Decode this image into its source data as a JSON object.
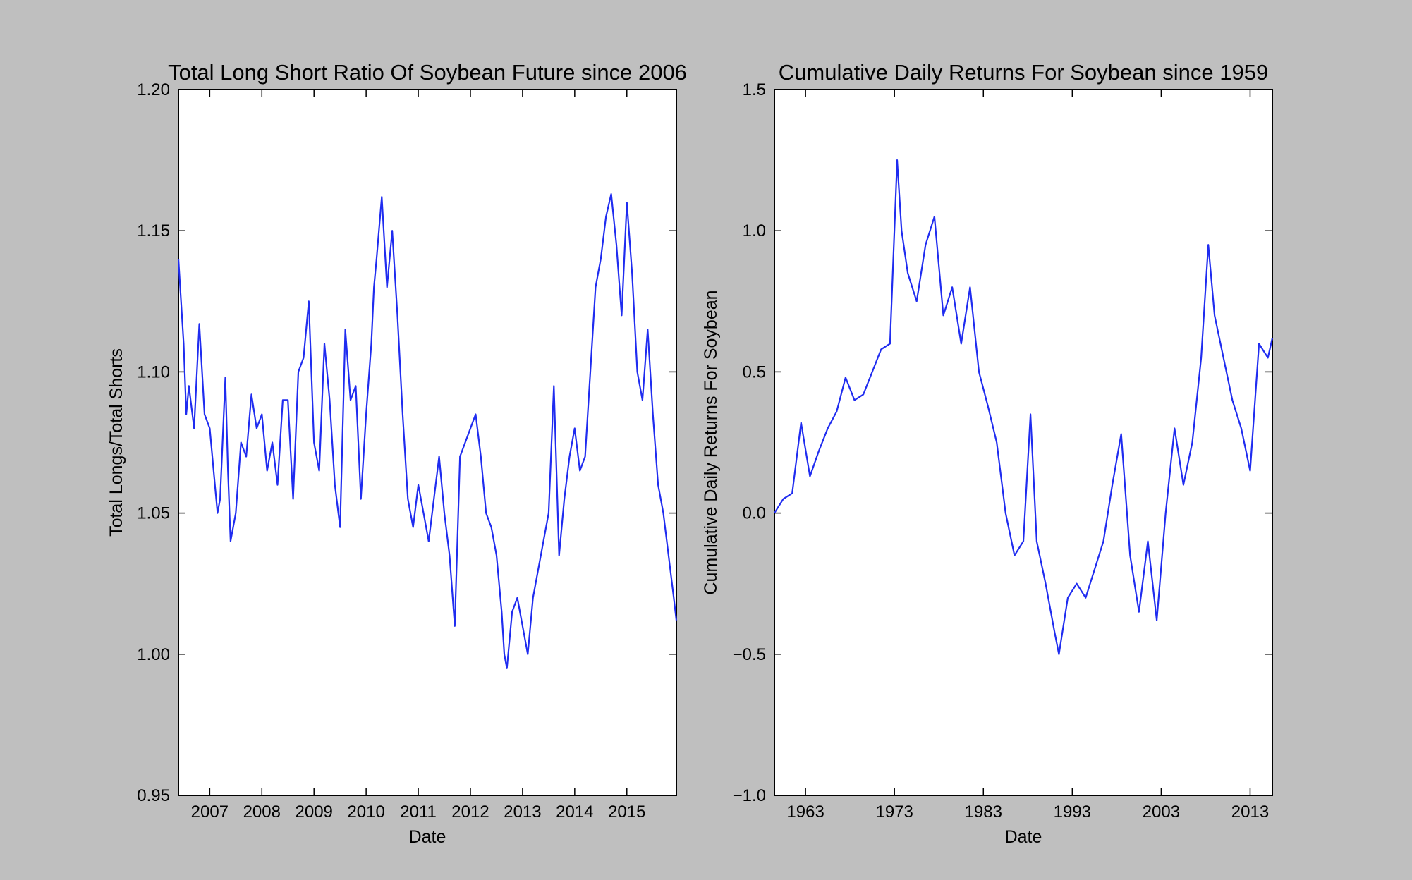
{
  "chart_data": [
    {
      "type": "line",
      "title": "Total Long Short Ratio Of Soybean Future since 2006",
      "xlabel": "Date",
      "ylabel": "Total Longs/Total Shorts",
      "xlim": [
        2006.4,
        2015.95
      ],
      "ylim": [
        0.95,
        1.2
      ],
      "y_ticks": [
        "0.95",
        "1.00",
        "1.05",
        "1.10",
        "1.15",
        "1.20"
      ],
      "x_ticks": [
        "2007",
        "2008",
        "2009",
        "2010",
        "2011",
        "2012",
        "2013",
        "2014",
        "2015"
      ],
      "grid": false,
      "line_color": "#1f2cf0",
      "x": [
        2006.4,
        2006.5,
        2006.55,
        2006.6,
        2006.7,
        2006.8,
        2006.9,
        2007.0,
        2007.1,
        2007.15,
        2007.2,
        2007.3,
        2007.35,
        2007.4,
        2007.5,
        2007.6,
        2007.7,
        2007.8,
        2007.9,
        2008.0,
        2008.1,
        2008.2,
        2008.3,
        2008.4,
        2008.5,
        2008.6,
        2008.7,
        2008.8,
        2008.9,
        2009.0,
        2009.1,
        2009.2,
        2009.3,
        2009.4,
        2009.5,
        2009.6,
        2009.7,
        2009.8,
        2009.9,
        2010.0,
        2010.1,
        2010.15,
        2010.2,
        2010.3,
        2010.4,
        2010.5,
        2010.6,
        2010.7,
        2010.8,
        2010.9,
        2011.0,
        2011.1,
        2011.2,
        2011.3,
        2011.4,
        2011.5,
        2011.6,
        2011.7,
        2011.8,
        2011.9,
        2012.0,
        2012.1,
        2012.2,
        2012.3,
        2012.4,
        2012.5,
        2012.6,
        2012.65,
        2012.7,
        2012.8,
        2012.9,
        2013.0,
        2013.1,
        2013.2,
        2013.3,
        2013.4,
        2013.5,
        2013.6,
        2013.7,
        2013.8,
        2013.9,
        2014.0,
        2014.1,
        2014.2,
        2014.3,
        2014.4,
        2014.5,
        2014.6,
        2014.7,
        2014.8,
        2014.9,
        2015.0,
        2015.1,
        2015.2,
        2015.3,
        2015.4,
        2015.5,
        2015.6,
        2015.7,
        2015.8,
        2015.9,
        2015.95
      ],
      "y": [
        1.14,
        1.11,
        1.085,
        1.095,
        1.08,
        1.117,
        1.085,
        1.08,
        1.06,
        1.05,
        1.055,
        1.098,
        1.065,
        1.04,
        1.05,
        1.075,
        1.07,
        1.092,
        1.08,
        1.085,
        1.065,
        1.075,
        1.06,
        1.09,
        1.09,
        1.055,
        1.1,
        1.105,
        1.125,
        1.075,
        1.065,
        1.11,
        1.09,
        1.06,
        1.045,
        1.115,
        1.09,
        1.095,
        1.055,
        1.085,
        1.11,
        1.13,
        1.14,
        1.162,
        1.13,
        1.15,
        1.12,
        1.085,
        1.055,
        1.045,
        1.06,
        1.05,
        1.04,
        1.055,
        1.07,
        1.05,
        1.035,
        1.01,
        1.07,
        1.075,
        1.08,
        1.085,
        1.07,
        1.05,
        1.045,
        1.035,
        1.015,
        1.0,
        0.995,
        1.015,
        1.02,
        1.01,
        1.0,
        1.02,
        1.03,
        1.04,
        1.05,
        1.095,
        1.035,
        1.055,
        1.07,
        1.08,
        1.065,
        1.07,
        1.1,
        1.13,
        1.14,
        1.155,
        1.163,
        1.145,
        1.12,
        1.16,
        1.135,
        1.1,
        1.09,
        1.115,
        1.085,
        1.06,
        1.05,
        1.035,
        1.02,
        1.012
      ]
    },
    {
      "type": "line",
      "title": "Cumulative Daily Returns For Soybean since 1959",
      "xlabel": "Date",
      "ylabel": "Cumulative Daily Returns For Soybean",
      "xlim": [
        1959.5,
        2015.5
      ],
      "ylim": [
        -1.0,
        1.5
      ],
      "y_ticks": [
        "−1.0",
        "−0.5",
        "0.0",
        "0.5",
        "1.0",
        "1.5"
      ],
      "x_ticks": [
        "1963",
        "1973",
        "1983",
        "1993",
        "2003",
        "2013"
      ],
      "grid": false,
      "line_color": "#1f2cf0",
      "x": [
        1959.5,
        1960.5,
        1961.5,
        1962.5,
        1963.5,
        1964.5,
        1965.5,
        1966.5,
        1967.5,
        1968.5,
        1969.5,
        1970.5,
        1971.5,
        1972.5,
        1973.3,
        1973.8,
        1974.5,
        1975.5,
        1976.5,
        1977.5,
        1978.5,
        1979.5,
        1980.5,
        1981.5,
        1982.5,
        1983.5,
        1984.5,
        1985.5,
        1986.5,
        1987.5,
        1988.3,
        1989.0,
        1990.0,
        1991.0,
        1991.5,
        1992.5,
        1993.5,
        1994.5,
        1995.5,
        1996.5,
        1997.5,
        1998.5,
        1999.5,
        2000.5,
        2001.5,
        2002.5,
        2003.5,
        2004.5,
        2005.5,
        2006.5,
        2007.5,
        2008.3,
        2009.0,
        2010.0,
        2011.0,
        2012.0,
        2013.0,
        2014.0,
        2015.0,
        2015.5
      ],
      "y": [
        0.0,
        0.05,
        0.07,
        0.32,
        0.13,
        0.22,
        0.3,
        0.36,
        0.48,
        0.4,
        0.42,
        0.5,
        0.58,
        0.6,
        1.25,
        1.0,
        0.85,
        0.75,
        0.95,
        1.05,
        0.7,
        0.8,
        0.6,
        0.8,
        0.5,
        0.38,
        0.25,
        0.0,
        -0.15,
        -0.1,
        0.35,
        -0.1,
        -0.25,
        -0.42,
        -0.5,
        -0.3,
        -0.25,
        -0.3,
        -0.2,
        -0.1,
        0.1,
        0.28,
        -0.15,
        -0.35,
        -0.1,
        -0.38,
        0.0,
        0.3,
        0.1,
        0.25,
        0.55,
        0.95,
        0.7,
        0.55,
        0.4,
        0.3,
        0.15,
        0.6,
        0.55,
        0.62
      ]
    }
  ]
}
